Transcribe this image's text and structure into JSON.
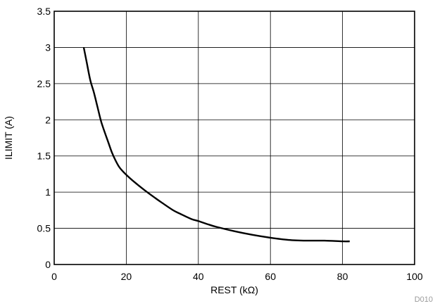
{
  "chart_data": {
    "type": "line",
    "title": "",
    "xlabel": "REST (kΩ)",
    "ylabel": "ILIMIT (A)",
    "xlim": [
      0,
      100
    ],
    "ylim": [
      0,
      3.5
    ],
    "x_ticks": [
      0,
      20,
      40,
      60,
      80,
      100
    ],
    "y_ticks": [
      0,
      0.5,
      1,
      1.5,
      2,
      2.5,
      3,
      3.5
    ],
    "x_tick_labels": [
      "0",
      "20",
      "40",
      "60",
      "80",
      "100"
    ],
    "y_tick_labels": [
      "0",
      "0.5",
      "1",
      "1.5",
      "2",
      "2.5",
      "3",
      "3.5"
    ],
    "grid": true,
    "series": [
      {
        "color": "#000000",
        "x": [
          8.2,
          9,
          10,
          11,
          12,
          13,
          14,
          15,
          16,
          17,
          18,
          19,
          20,
          22,
          25,
          28,
          30,
          33,
          35,
          38,
          40,
          43,
          45,
          50,
          55,
          60,
          65,
          70,
          75,
          80,
          82
        ],
        "y": [
          3.0,
          2.8,
          2.55,
          2.38,
          2.18,
          1.98,
          1.83,
          1.69,
          1.55,
          1.44,
          1.35,
          1.29,
          1.24,
          1.15,
          1.03,
          0.92,
          0.85,
          0.75,
          0.7,
          0.63,
          0.6,
          0.55,
          0.52,
          0.46,
          0.41,
          0.37,
          0.34,
          0.33,
          0.33,
          0.32,
          0.32
        ]
      }
    ]
  },
  "figure_id": "D010"
}
